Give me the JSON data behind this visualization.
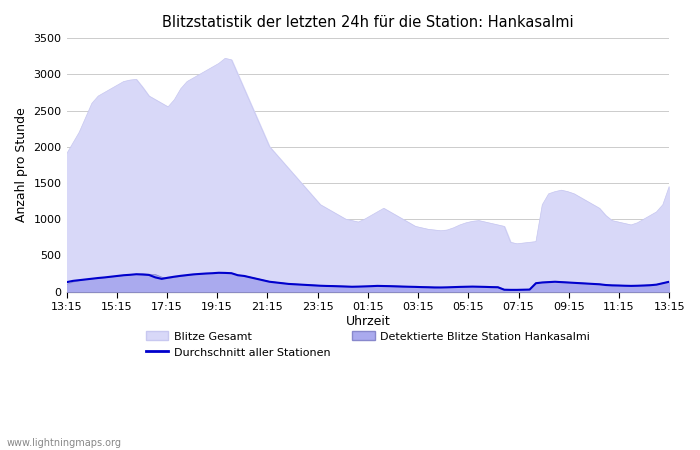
{
  "title": "Blitzstatistik der letzten 24h für die Station: Hankasalmi",
  "xlabel": "Uhrzeit",
  "ylabel": "Anzahl pro Stunde",
  "ylim": [
    0,
    3500
  ],
  "yticks": [
    0,
    500,
    1000,
    1500,
    2000,
    2500,
    3000,
    3500
  ],
  "xtick_labels": [
    "13:15",
    "15:15",
    "17:15",
    "19:15",
    "21:15",
    "23:15",
    "01:15",
    "03:15",
    "05:15",
    "07:15",
    "09:15",
    "11:15",
    "13:15"
  ],
  "background_color": "#ffffff",
  "plot_bg_color": "#ffffff",
  "watermark": "www.lightningmaps.org",
  "color_gesamt_fill": "#d8d8f8",
  "color_gesamt_edge": "#c8c8f0",
  "color_station_fill": "#aaaaee",
  "color_station_edge": "#8888cc",
  "color_avg_line": "#0000cc",
  "legend_labels": [
    "Blitze Gesamt",
    "Durchschnitt aller Stationen",
    "Detektierte Blitze Station Hankasalmi"
  ],
  "gesamt_values": [
    1900,
    2050,
    2200,
    2400,
    2600,
    2700,
    2750,
    2800,
    2850,
    2900,
    2920,
    2930,
    2820,
    2700,
    2650,
    2600,
    2550,
    2650,
    2800,
    2900,
    2950,
    3000,
    3050,
    3100,
    3150,
    3220,
    3200,
    3000,
    2800,
    2600,
    2400,
    2200,
    2000,
    1900,
    1800,
    1700,
    1600,
    1500,
    1400,
    1300,
    1200,
    1150,
    1100,
    1050,
    1000,
    980,
    960,
    1000,
    1050,
    1100,
    1150,
    1100,
    1050,
    1000,
    950,
    900,
    880,
    860,
    850,
    840,
    850,
    880,
    920,
    950,
    970,
    980,
    960,
    940,
    920,
    900,
    680,
    660,
    670,
    680,
    690,
    1200,
    1350,
    1380,
    1400,
    1380,
    1350,
    1300,
    1250,
    1200,
    1150,
    1050,
    980,
    960,
    940,
    920,
    950,
    1000,
    1050,
    1100,
    1200,
    1450
  ],
  "station_values": [
    100,
    130,
    150,
    165,
    175,
    185,
    190,
    200,
    210,
    220,
    230,
    240,
    245,
    240,
    235,
    200,
    180,
    195,
    210,
    220,
    230,
    240,
    245,
    250,
    255,
    260,
    255,
    230,
    220,
    200,
    180,
    160,
    140,
    130,
    120,
    110,
    105,
    100,
    95,
    90,
    85,
    82,
    80,
    78,
    75,
    72,
    70,
    72,
    75,
    78,
    82,
    80,
    78,
    75,
    72,
    70,
    68,
    65,
    63,
    60,
    60,
    62,
    65,
    68,
    70,
    72,
    70,
    68,
    65,
    30,
    28,
    28,
    30,
    32,
    120,
    130,
    135,
    140,
    135,
    130,
    125,
    120,
    115,
    110,
    105,
    95,
    90,
    88,
    85,
    83,
    85,
    88,
    92,
    100,
    120,
    140
  ],
  "avg_values": [
    130,
    148,
    158,
    168,
    178,
    188,
    196,
    206,
    216,
    226,
    232,
    240,
    236,
    230,
    196,
    176,
    192,
    206,
    218,
    228,
    238,
    244,
    250,
    254,
    260,
    258,
    254,
    226,
    216,
    196,
    176,
    156,
    136,
    126,
    116,
    106,
    101,
    96,
    91,
    86,
    81,
    78,
    76,
    73,
    70,
    67,
    69,
    72,
    75,
    79,
    77,
    75,
    72,
    69,
    67,
    65,
    62,
    60,
    57,
    57,
    59,
    62,
    65,
    67,
    69,
    67,
    65,
    62,
    60,
    26,
    24,
    24,
    26,
    28,
    116,
    126,
    131,
    136,
    131,
    126,
    121,
    116,
    111,
    106,
    101,
    91,
    86,
    84,
    81,
    79,
    81,
    84,
    88,
    96,
    116,
    136
  ]
}
